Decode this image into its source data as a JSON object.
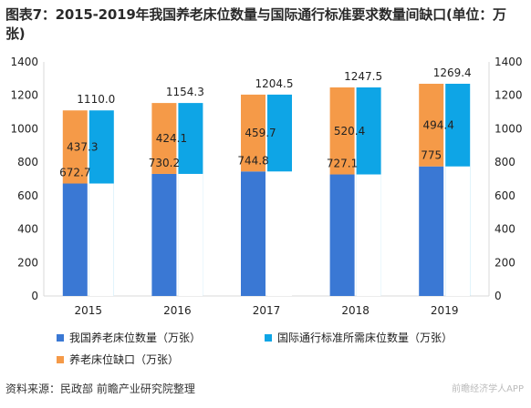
{
  "title": "图表7：2015-2019年我国养老床位数量与国际通行标准要求数量间缺口(单位：万张)",
  "source": "资料来源：民政部 前瞻产业研究院整理",
  "watermark": "前瞻经济学人APP",
  "colors": {
    "domestic": "#3a78d4",
    "international": "#0ea5e6",
    "gap": "#f59a48",
    "axis": "#d8d8d8",
    "text": "#222222"
  },
  "legend": {
    "domestic": "我国养老床位数量（万张）",
    "international": "国际通行标准所需床位数量（万张）",
    "gap": "养老床位缺口（万张）"
  },
  "chart_data": {
    "type": "bar",
    "categories": [
      "2015",
      "2016",
      "2017",
      "2018",
      "2019"
    ],
    "series": [
      {
        "name": "我国养老床位数量（万张）",
        "values": [
          672.7,
          730.2,
          744.8,
          727.1,
          775
        ],
        "labels": [
          "672.7",
          "730.2",
          "744.8",
          "727.1",
          "775"
        ]
      },
      {
        "name": "国际通行标准所需床位数量（万张）",
        "values": [
          1110.0,
          1154.3,
          1204.5,
          1247.5,
          1269.4
        ],
        "labels": [
          "1110.0",
          "1154.3",
          "1204.5",
          "1247.5",
          "1269.4"
        ]
      },
      {
        "name": "养老床位缺口（万张）",
        "values": [
          437.3,
          424.1,
          459.7,
          520.4,
          494.4
        ],
        "labels": [
          "437.3",
          "424.1",
          "459.7",
          "520.4",
          "494.4"
        ],
        "stacked_on": "我国养老床位数量（万张）"
      }
    ],
    "ylim": [
      0,
      1400
    ],
    "yticks": [
      "0",
      "200",
      "400",
      "600",
      "800",
      "1000",
      "1200",
      "1400"
    ],
    "y_axis_sides": "left-and-right",
    "grid": false
  }
}
